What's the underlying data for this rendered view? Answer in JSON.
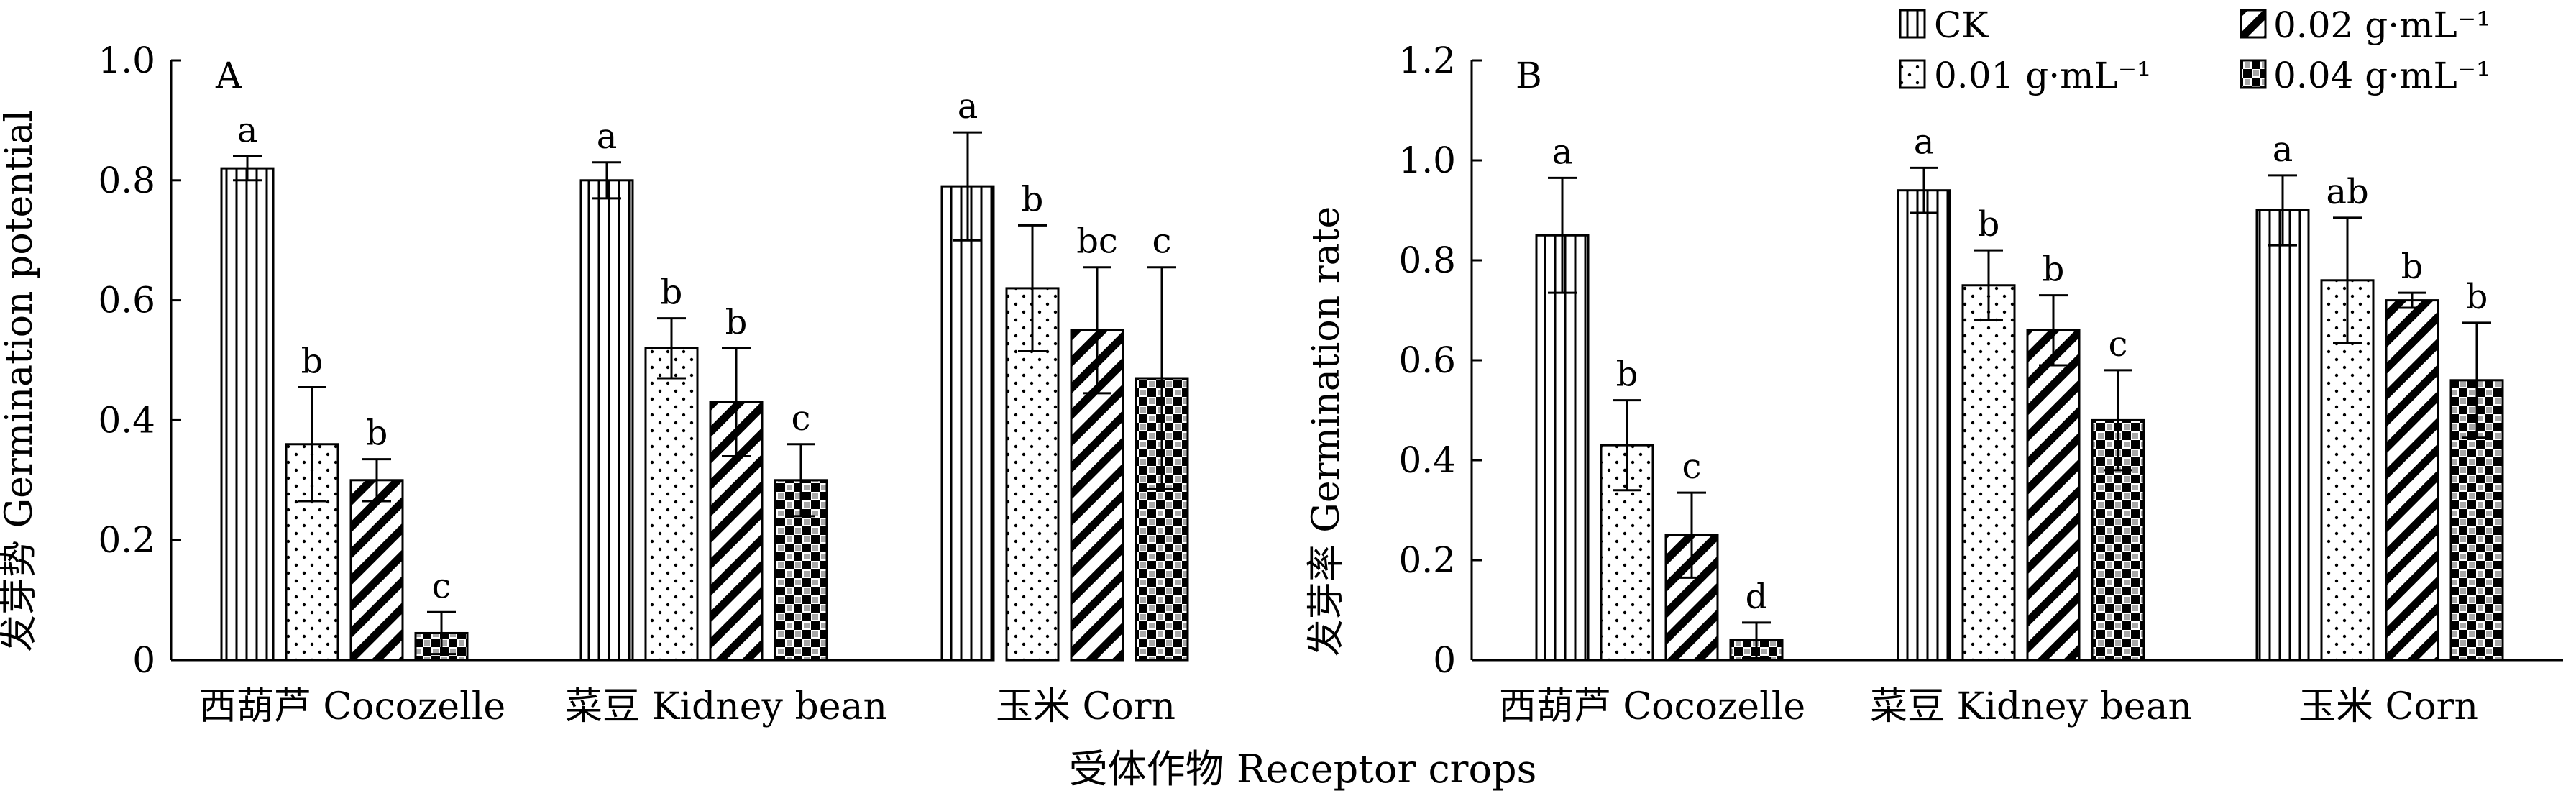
{
  "figure": {
    "xlabel": "受体作物 Receptor crops",
    "legend": {
      "entries": [
        "CK",
        "0.01 g·mL⁻¹",
        "0.02  g·mL⁻¹",
        "0.04  g·mL⁻¹"
      ],
      "patterns": [
        "vertical-lines",
        "dots",
        "diagonal-hatch",
        "checkerboard"
      ]
    }
  },
  "chart_data": [
    {
      "type": "bar",
      "panel_label": "A",
      "ylabel": "发芽势 Germination potential",
      "ylim": [
        0,
        1.0
      ],
      "yticks": [
        "0",
        "0.2",
        "0.4",
        "0.6",
        "0.8",
        "1.0"
      ],
      "categories": [
        "西葫芦 Cocozelle",
        "菜豆 Kidney bean",
        "玉米 Corn"
      ],
      "series": [
        {
          "name": "CK",
          "values": [
            0.82,
            0.8,
            0.79
          ],
          "errors": [
            0.02,
            0.03,
            0.09
          ],
          "letters": [
            "a",
            "a",
            "a"
          ]
        },
        {
          "name": "0.01 g·mL⁻¹",
          "values": [
            0.36,
            0.52,
            0.62
          ],
          "errors": [
            0.095,
            0.05,
            0.105
          ],
          "letters": [
            "b",
            "b",
            "b"
          ]
        },
        {
          "name": "0.02  g·mL⁻¹",
          "values": [
            0.3,
            0.43,
            0.55
          ],
          "errors": [
            0.035,
            0.09,
            0.105
          ],
          "letters": [
            "b",
            "b",
            "bc"
          ]
        },
        {
          "name": "0.04  g·mL⁻¹",
          "values": [
            0.045,
            0.3,
            0.47
          ],
          "errors": [
            0.035,
            0.06,
            0.185
          ],
          "letters": [
            "c",
            "c",
            "c"
          ]
        }
      ]
    },
    {
      "type": "bar",
      "panel_label": "B",
      "ylabel": "发芽率 Germination rate",
      "ylim": [
        0,
        1.2
      ],
      "yticks": [
        "0",
        "0.2",
        "0.4",
        "0.6",
        "0.8",
        "1.0",
        "1.2"
      ],
      "categories": [
        "西葫芦 Cocozelle",
        "菜豆 Kidney bean",
        "玉米 Corn"
      ],
      "series": [
        {
          "name": "CK",
          "values": [
            0.85,
            0.94,
            0.9
          ],
          "errors": [
            0.115,
            0.045,
            0.07
          ],
          "letters": [
            "a",
            "a",
            "a"
          ]
        },
        {
          "name": "0.01 g·mL⁻¹",
          "values": [
            0.43,
            0.75,
            0.76
          ],
          "errors": [
            0.09,
            0.07,
            0.125
          ],
          "letters": [
            "b",
            "b",
            "ab"
          ]
        },
        {
          "name": "0.02  g·mL⁻¹",
          "values": [
            0.25,
            0.66,
            0.72
          ],
          "errors": [
            0.085,
            0.07,
            0.015
          ],
          "letters": [
            "c",
            "b",
            "b"
          ]
        },
        {
          "name": "0.04  g·mL⁻¹",
          "values": [
            0.04,
            0.48,
            0.56
          ],
          "errors": [
            0.035,
            0.1,
            0.115
          ],
          "letters": [
            "d",
            "c",
            "b"
          ]
        }
      ]
    }
  ]
}
